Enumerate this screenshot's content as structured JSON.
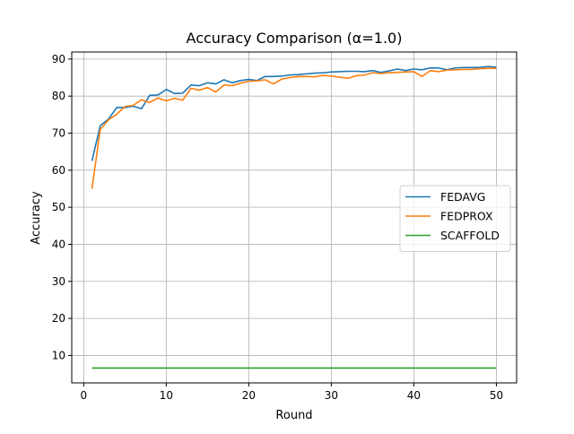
{
  "chart_data": {
    "type": "line",
    "title": "Accuracy Comparison (α=1.0)",
    "xlabel": "Round",
    "ylabel": "Accuracy",
    "xlim": [
      -1.45,
      52.45
    ],
    "ylim": [
      2.6,
      91.9
    ],
    "xticks": [
      0,
      10,
      20,
      30,
      40,
      50
    ],
    "yticks": [
      10,
      20,
      30,
      40,
      50,
      60,
      70,
      80,
      90
    ],
    "grid": true,
    "legend": "center-right",
    "x": [
      1,
      2,
      3,
      4,
      5,
      6,
      7,
      8,
      9,
      10,
      11,
      12,
      13,
      14,
      15,
      16,
      17,
      18,
      19,
      20,
      21,
      22,
      23,
      24,
      25,
      26,
      27,
      28,
      29,
      30,
      31,
      32,
      33,
      34,
      35,
      36,
      37,
      38,
      39,
      40,
      41,
      42,
      43,
      44,
      45,
      46,
      47,
      48,
      49,
      50
    ],
    "series": [
      {
        "name": "FEDAVG",
        "color": "#1f77b4",
        "values": [
          62.5,
          72.0,
          73.8,
          76.9,
          76.9,
          77.3,
          76.6,
          80.2,
          80.3,
          81.8,
          80.7,
          80.8,
          83.0,
          82.8,
          83.6,
          83.3,
          84.4,
          83.6,
          84.2,
          84.5,
          84.2,
          85.3,
          85.3,
          85.4,
          85.7,
          85.8,
          86.0,
          86.2,
          86.3,
          86.5,
          86.6,
          86.7,
          86.7,
          86.6,
          86.9,
          86.4,
          86.8,
          87.3,
          86.9,
          87.3,
          87.1,
          87.6,
          87.6,
          87.1,
          87.6,
          87.7,
          87.7,
          87.7,
          88.0,
          87.8
        ]
      },
      {
        "name": "FEDPROX",
        "color": "#ff7f0e",
        "values": [
          55.0,
          71.0,
          73.6,
          75.1,
          77.2,
          77.5,
          79.0,
          78.3,
          79.5,
          78.7,
          79.4,
          78.9,
          82.1,
          81.6,
          82.3,
          81.1,
          83.0,
          82.8,
          83.5,
          84.0,
          84.1,
          84.4,
          83.3,
          84.6,
          85.0,
          85.3,
          85.3,
          85.2,
          85.6,
          85.4,
          85.1,
          84.8,
          85.5,
          85.7,
          86.3,
          86.1,
          86.3,
          86.4,
          86.5,
          86.6,
          85.3,
          86.9,
          86.6,
          87.0,
          87.1,
          87.2,
          87.2,
          87.4,
          87.5,
          87.5
        ]
      },
      {
        "name": "SCAFFOLD",
        "color": "#2ca02c",
        "values": [
          6.6,
          6.6,
          6.6,
          6.6,
          6.6,
          6.6,
          6.6,
          6.6,
          6.6,
          6.6,
          6.6,
          6.6,
          6.6,
          6.6,
          6.6,
          6.6,
          6.6,
          6.6,
          6.6,
          6.6,
          6.6,
          6.6,
          6.6,
          6.6,
          6.6,
          6.6,
          6.6,
          6.6,
          6.6,
          6.6,
          6.6,
          6.6,
          6.6,
          6.6,
          6.6,
          6.6,
          6.6,
          6.6,
          6.6,
          6.6,
          6.6,
          6.6,
          6.6,
          6.6,
          6.6,
          6.6,
          6.6,
          6.6,
          6.6,
          6.6
        ]
      }
    ]
  }
}
